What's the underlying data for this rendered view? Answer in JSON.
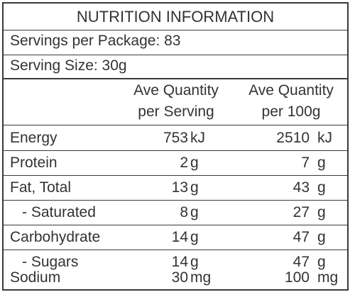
{
  "title": "NUTRITION INFORMATION",
  "servings_per_package": "Servings per Package: 83",
  "serving_size": "Serving Size: 30g",
  "headers": {
    "col1_line1": "Ave Quantity",
    "col1_line2": "per Serving",
    "col2_line1": "Ave Quantity",
    "col2_line2": "per 100g"
  },
  "rows": [
    {
      "name": "Energy",
      "serving_value": "753",
      "serving_unit": "kJ",
      "per100_value": "2510",
      "per100_unit": "kJ"
    },
    {
      "name": "Protein",
      "serving_value": "2",
      "serving_unit": "g",
      "per100_value": "7",
      "per100_unit": "g"
    },
    {
      "name": "Fat, Total",
      "serving_value": "13",
      "serving_unit": "g",
      "per100_value": "43",
      "per100_unit": "g"
    },
    {
      "name": "- Saturated",
      "serving_value": "8",
      "serving_unit": "g",
      "per100_value": "27",
      "per100_unit": "g"
    },
    {
      "name": "Carbohydrate",
      "serving_value": "14",
      "serving_unit": "g",
      "per100_value": "47",
      "per100_unit": "g"
    },
    {
      "name": "- Sugars",
      "serving_value": "14",
      "serving_unit": "g",
      "per100_value": "47",
      "per100_unit": "g"
    },
    {
      "name": "Sodium",
      "serving_value": "30",
      "serving_unit": "mg",
      "per100_value": "100",
      "per100_unit": "mg"
    }
  ]
}
